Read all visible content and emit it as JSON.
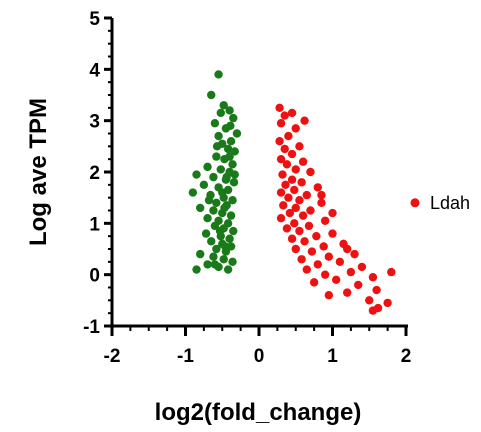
{
  "chart_data": {
    "type": "scatter",
    "xlabel": "log2(fold_change)",
    "ylabel": "Log ave TPM",
    "xlim": [
      -2,
      2
    ],
    "ylim": [
      -1,
      5
    ],
    "x_ticks": [
      "-2",
      "-1",
      "0",
      "1",
      "2"
    ],
    "y_ticks": [
      "-1",
      "0",
      "1",
      "2",
      "3",
      "4",
      "5"
    ],
    "grid": false,
    "legend_position": "right",
    "series": [
      {
        "color": "#1a7a1a",
        "points": [
          [
            -0.55,
            3.9
          ],
          [
            -0.65,
            3.5
          ],
          [
            -0.48,
            3.3
          ],
          [
            -0.4,
            3.2
          ],
          [
            -0.52,
            3.15
          ],
          [
            -0.35,
            3.05
          ],
          [
            -0.6,
            2.95
          ],
          [
            -0.45,
            2.85
          ],
          [
            -0.3,
            2.75
          ],
          [
            -0.55,
            2.7
          ],
          [
            -0.38,
            2.6
          ],
          [
            -0.5,
            2.55
          ],
          [
            -0.42,
            2.45
          ],
          [
            -0.33,
            2.4
          ],
          [
            -0.58,
            2.3
          ],
          [
            -0.47,
            2.25
          ],
          [
            -0.36,
            2.15
          ],
          [
            -0.7,
            2.1
          ],
          [
            -0.52,
            2.05
          ],
          [
            -0.4,
            2.0
          ],
          [
            -0.85,
            1.95
          ],
          [
            -0.62,
            1.9
          ],
          [
            -0.45,
            1.85
          ],
          [
            -0.34,
            1.8
          ],
          [
            -0.75,
            1.75
          ],
          [
            -0.55,
            1.7
          ],
          [
            -0.42,
            1.65
          ],
          [
            -0.9,
            1.6
          ],
          [
            -0.66,
            1.55
          ],
          [
            -0.48,
            1.5
          ],
          [
            -0.36,
            1.45
          ],
          [
            -0.58,
            1.4
          ],
          [
            -0.44,
            1.35
          ],
          [
            -0.8,
            1.3
          ],
          [
            -0.62,
            1.25
          ],
          [
            -0.5,
            1.2
          ],
          [
            -0.38,
            1.15
          ],
          [
            -0.7,
            1.1
          ],
          [
            -0.55,
            1.05
          ],
          [
            -0.42,
            1.0
          ],
          [
            -0.6,
            0.95
          ],
          [
            -0.48,
            0.9
          ],
          [
            -0.35,
            0.85
          ],
          [
            -0.72,
            0.8
          ],
          [
            -0.52,
            0.75
          ],
          [
            -0.4,
            0.7
          ],
          [
            -0.65,
            0.65
          ],
          [
            -0.5,
            0.6
          ],
          [
            -0.38,
            0.55
          ],
          [
            -0.58,
            0.5
          ],
          [
            -0.45,
            0.45
          ],
          [
            -0.8,
            0.4
          ],
          [
            -0.62,
            0.35
          ],
          [
            -0.48,
            0.3
          ],
          [
            -0.36,
            0.25
          ],
          [
            -0.7,
            0.2
          ],
          [
            -0.55,
            0.15
          ],
          [
            -0.85,
            0.1
          ],
          [
            -0.42,
            0.1
          ],
          [
            -0.6,
            0.2
          ],
          [
            -0.5,
            1.6
          ],
          [
            -0.44,
            1.9
          ],
          [
            -0.4,
            2.3
          ],
          [
            -0.47,
            1.3
          ],
          [
            -0.53,
            0.85
          ],
          [
            -0.33,
            1.95
          ],
          [
            -0.57,
            2.5
          ],
          [
            -0.39,
            2.9
          ],
          [
            -0.46,
            0.55
          ],
          [
            -0.68,
            1.45
          ]
        ]
      },
      {
        "color": "#ee1111",
        "points": [
          [
            0.28,
            3.25
          ],
          [
            0.35,
            3.1
          ],
          [
            0.45,
            3.15
          ],
          [
            0.62,
            3.0
          ],
          [
            0.3,
            2.95
          ],
          [
            0.5,
            2.85
          ],
          [
            0.4,
            2.7
          ],
          [
            0.28,
            2.6
          ],
          [
            0.55,
            2.5
          ],
          [
            0.35,
            2.45
          ],
          [
            0.45,
            2.35
          ],
          [
            0.3,
            2.25
          ],
          [
            0.6,
            2.2
          ],
          [
            0.38,
            2.15
          ],
          [
            0.5,
            2.05
          ],
          [
            0.7,
            2.0
          ],
          [
            0.32,
            1.95
          ],
          [
            0.45,
            1.85
          ],
          [
            0.58,
            1.8
          ],
          [
            0.36,
            1.75
          ],
          [
            0.8,
            1.7
          ],
          [
            0.48,
            1.65
          ],
          [
            0.3,
            1.6
          ],
          [
            0.65,
            1.55
          ],
          [
            0.4,
            1.5
          ],
          [
            0.55,
            1.45
          ],
          [
            0.85,
            1.4
          ],
          [
            0.33,
            1.35
          ],
          [
            0.5,
            1.3
          ],
          [
            0.7,
            1.25
          ],
          [
            0.42,
            1.2
          ],
          [
            0.6,
            1.15
          ],
          [
            0.3,
            1.1
          ],
          [
            0.9,
            1.05
          ],
          [
            0.48,
            1.0
          ],
          [
            0.68,
            0.95
          ],
          [
            0.38,
            0.9
          ],
          [
            0.55,
            0.85
          ],
          [
            1.0,
            0.8
          ],
          [
            0.78,
            0.75
          ],
          [
            0.45,
            0.7
          ],
          [
            0.62,
            0.65
          ],
          [
            1.15,
            0.6
          ],
          [
            0.88,
            0.55
          ],
          [
            0.5,
            0.5
          ],
          [
            0.72,
            0.45
          ],
          [
            1.3,
            0.4
          ],
          [
            0.95,
            0.35
          ],
          [
            0.58,
            0.3
          ],
          [
            1.1,
            0.25
          ],
          [
            0.8,
            0.2
          ],
          [
            1.4,
            0.15
          ],
          [
            0.65,
            0.1
          ],
          [
            1.25,
            0.05
          ],
          [
            0.9,
            0.0
          ],
          [
            1.55,
            -0.05
          ],
          [
            1.05,
            -0.1
          ],
          [
            0.75,
            -0.15
          ],
          [
            1.35,
            -0.2
          ],
          [
            1.6,
            -0.3
          ],
          [
            1.2,
            -0.35
          ],
          [
            0.95,
            -0.4
          ],
          [
            1.5,
            -0.5
          ],
          [
            1.75,
            -0.55
          ],
          [
            1.62,
            -0.65
          ],
          [
            1.55,
            -0.7
          ],
          [
            1.8,
            0.05
          ],
          [
            1.2,
            0.5
          ],
          [
            0.85,
            1.55
          ],
          [
            1.0,
            1.2
          ]
        ]
      }
    ],
    "annotations": [
      {
        "label": "Ldah",
        "x": 2.1,
        "y": 1.4,
        "color": "#ee1111"
      }
    ]
  }
}
